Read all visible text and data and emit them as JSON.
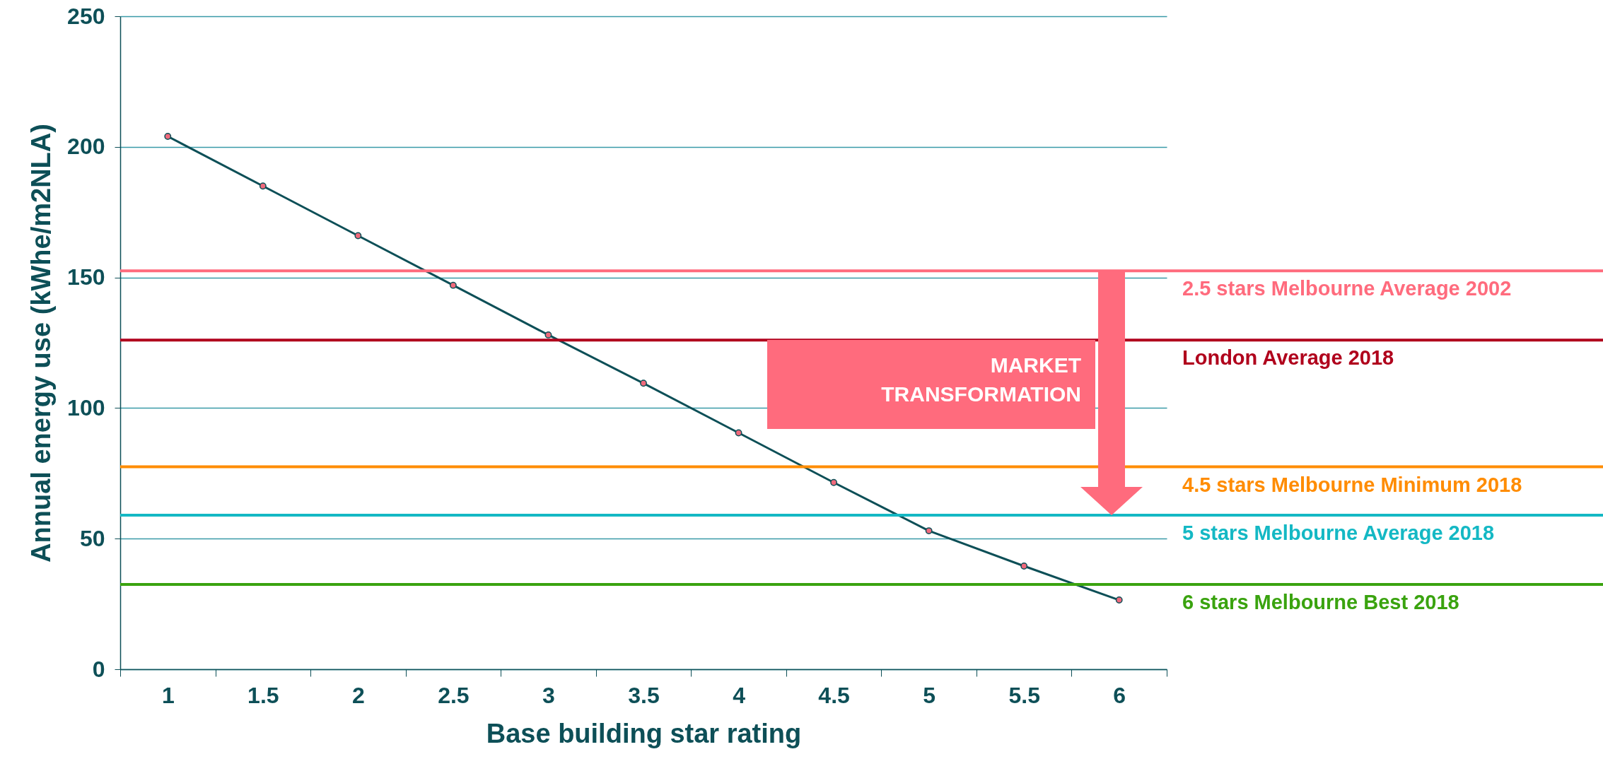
{
  "chart_data": {
    "type": "line",
    "xlabel": "Base building star rating",
    "ylabel": "Annual energy use (kWhe/m2NLA)",
    "categories": [
      "1",
      "1.5",
      "2",
      "2.5",
      "3",
      "3.5",
      "4",
      "4.5",
      "5",
      "5.5",
      "6"
    ],
    "series": [
      {
        "color": "#0d4f57",
        "values": [
          204,
          185,
          166,
          147,
          128,
          109.5,
          90.5,
          71.5,
          53,
          39.5,
          26.5
        ]
      }
    ],
    "ylim": [
      0,
      250
    ],
    "yticks": [
      0,
      50,
      100,
      150,
      200,
      250
    ],
    "grid": "y",
    "marker": "circle",
    "line_style": "solid",
    "ref_lines": [
      {
        "axis": "y",
        "value": 152.5,
        "label": "2.5 stars Melbourne Average 2002",
        "color": "#ff6b7d"
      },
      {
        "axis": "y",
        "value": 126,
        "label": "London Average 2018",
        "color": "#b0001c"
      },
      {
        "axis": "y",
        "value": 77.5,
        "label": "4.5 stars Melbourne Minimum 2018",
        "color": "#ff8c00"
      },
      {
        "axis": "y",
        "value": 59,
        "label": "5 stars Melbourne Average 2018",
        "color": "#14b8c4"
      },
      {
        "axis": "y",
        "value": 32.5,
        "label": "6 stars Melbourne Best 2018",
        "color": "#3aa30f"
      }
    ],
    "annotations": [
      "MARKET TRANSFORMATION"
    ]
  }
}
